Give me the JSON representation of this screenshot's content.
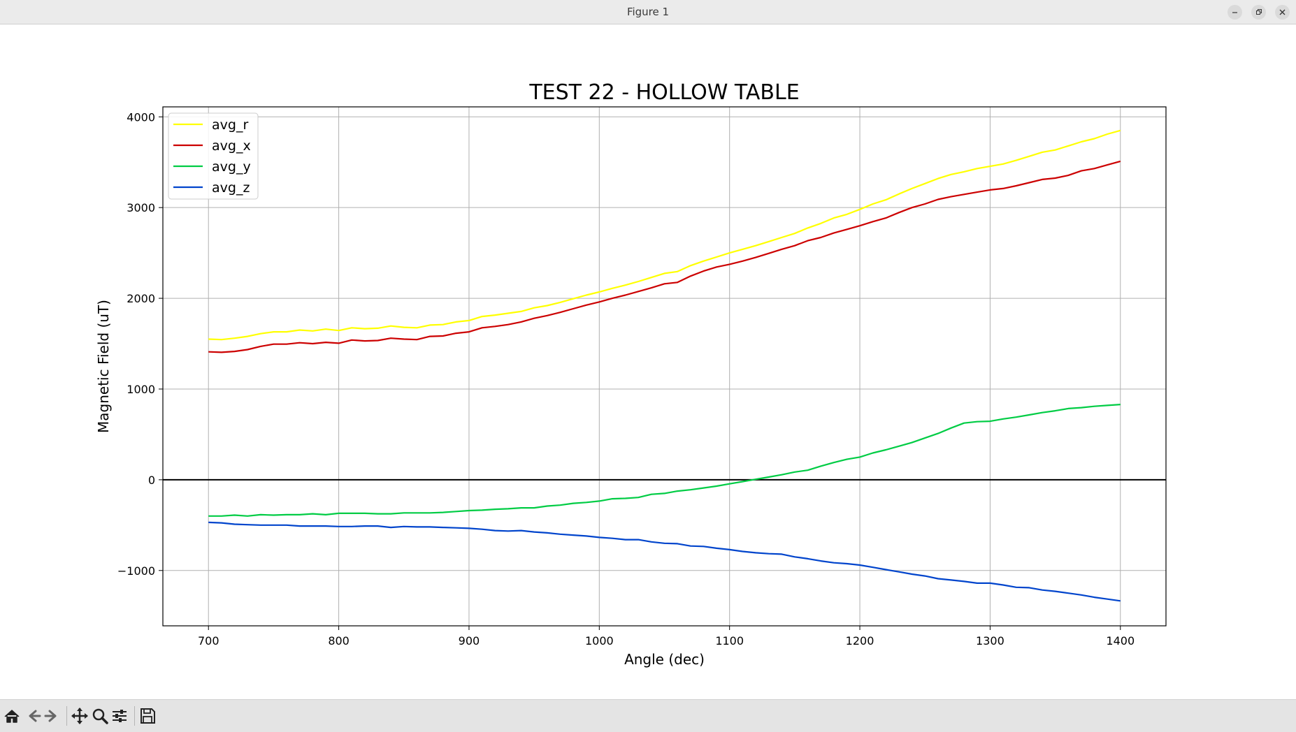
{
  "window": {
    "title": "Figure 1"
  },
  "toolbar": {
    "icons": [
      "home-icon",
      "back-icon",
      "forward-icon",
      "pan-icon",
      "zoom-icon",
      "configure-subplots-icon",
      "save-icon"
    ]
  },
  "chart_data": {
    "type": "line",
    "title": "TEST 22 - HOLLOW TABLE",
    "xlabel": "Angle (dec)",
    "ylabel": "Magnetic Field (uT)",
    "xlim": [
      665,
      1435
    ],
    "ylim": [
      -1610,
      4110
    ],
    "xticks": [
      700,
      800,
      900,
      1000,
      1100,
      1200,
      1300,
      1400
    ],
    "yticks": [
      -1000,
      0,
      1000,
      2000,
      3000,
      4000
    ],
    "ytick_labels": [
      "−1000",
      "0",
      "1000",
      "2000",
      "3000",
      "4000"
    ],
    "grid": true,
    "zero_line": true,
    "legend_position": "top-left",
    "x": [
      700,
      710,
      720,
      730,
      740,
      750,
      760,
      770,
      780,
      790,
      800,
      810,
      820,
      830,
      840,
      850,
      860,
      870,
      880,
      890,
      900,
      910,
      920,
      930,
      940,
      950,
      960,
      970,
      980,
      990,
      1000,
      1010,
      1020,
      1030,
      1040,
      1050,
      1060,
      1070,
      1080,
      1090,
      1100,
      1110,
      1120,
      1130,
      1140,
      1150,
      1160,
      1170,
      1180,
      1190,
      1200,
      1210,
      1220,
      1230,
      1240,
      1250,
      1260,
      1270,
      1280,
      1290,
      1300,
      1310,
      1320,
      1330,
      1340,
      1350,
      1360,
      1370,
      1380,
      1390,
      1400
    ],
    "series": [
      {
        "name": "avg_r",
        "color": "#ffff00",
        "values": [
          1550,
          1545,
          1560,
          1580,
          1610,
          1630,
          1630,
          1650,
          1640,
          1660,
          1645,
          1675,
          1665,
          1670,
          1695,
          1680,
          1675,
          1705,
          1710,
          1740,
          1755,
          1800,
          1815,
          1835,
          1855,
          1895,
          1920,
          1955,
          1995,
          2035,
          2070,
          2110,
          2145,
          2185,
          2230,
          2275,
          2295,
          2360,
          2410,
          2455,
          2500,
          2540,
          2580,
          2625,
          2670,
          2715,
          2775,
          2825,
          2885,
          2925,
          2980,
          3040,
          3085,
          3150,
          3210,
          3265,
          3320,
          3365,
          3395,
          3430,
          3455,
          3480,
          3520,
          3565,
          3610,
          3635,
          3680,
          3725,
          3760,
          3810,
          3850
        ]
      },
      {
        "name": "avg_x",
        "color": "#cc0000",
        "values": [
          1410,
          1405,
          1415,
          1435,
          1470,
          1495,
          1495,
          1510,
          1500,
          1515,
          1505,
          1540,
          1530,
          1535,
          1560,
          1550,
          1545,
          1580,
          1585,
          1615,
          1630,
          1675,
          1690,
          1710,
          1740,
          1780,
          1810,
          1845,
          1885,
          1925,
          1960,
          2000,
          2035,
          2075,
          2115,
          2160,
          2175,
          2245,
          2300,
          2345,
          2375,
          2410,
          2450,
          2495,
          2540,
          2580,
          2635,
          2670,
          2720,
          2760,
          2800,
          2845,
          2885,
          2945,
          3000,
          3040,
          3090,
          3120,
          3145,
          3170,
          3195,
          3210,
          3240,
          3275,
          3310,
          3325,
          3355,
          3405,
          3430,
          3470,
          3510
        ]
      },
      {
        "name": "avg_y",
        "color": "#00cc44",
        "values": [
          -400,
          -400,
          -390,
          -400,
          -385,
          -390,
          -385,
          -385,
          -375,
          -385,
          -370,
          -370,
          -370,
          -375,
          -375,
          -365,
          -365,
          -365,
          -360,
          -350,
          -340,
          -335,
          -325,
          -320,
          -310,
          -310,
          -290,
          -280,
          -260,
          -250,
          -235,
          -210,
          -205,
          -195,
          -160,
          -150,
          -125,
          -110,
          -90,
          -70,
          -45,
          -20,
          5,
          30,
          55,
          85,
          105,
          150,
          190,
          225,
          250,
          295,
          330,
          370,
          410,
          460,
          510,
          570,
          625,
          640,
          645,
          670,
          690,
          715,
          740,
          760,
          785,
          795,
          810,
          820,
          830
        ]
      },
      {
        "name": "avg_z",
        "color": "#0044cc",
        "values": [
          -470,
          -475,
          -490,
          -495,
          -500,
          -500,
          -500,
          -510,
          -510,
          -510,
          -515,
          -515,
          -510,
          -510,
          -525,
          -515,
          -520,
          -520,
          -525,
          -530,
          -535,
          -545,
          -560,
          -565,
          -560,
          -575,
          -585,
          -600,
          -610,
          -620,
          -635,
          -645,
          -660,
          -660,
          -685,
          -700,
          -705,
          -730,
          -735,
          -755,
          -770,
          -790,
          -805,
          -815,
          -820,
          -850,
          -870,
          -895,
          -915,
          -925,
          -940,
          -965,
          -990,
          -1015,
          -1040,
          -1060,
          -1090,
          -1105,
          -1120,
          -1140,
          -1140,
          -1160,
          -1185,
          -1190,
          -1215,
          -1230,
          -1250,
          -1270,
          -1295,
          -1315,
          -1335
        ]
      }
    ]
  }
}
